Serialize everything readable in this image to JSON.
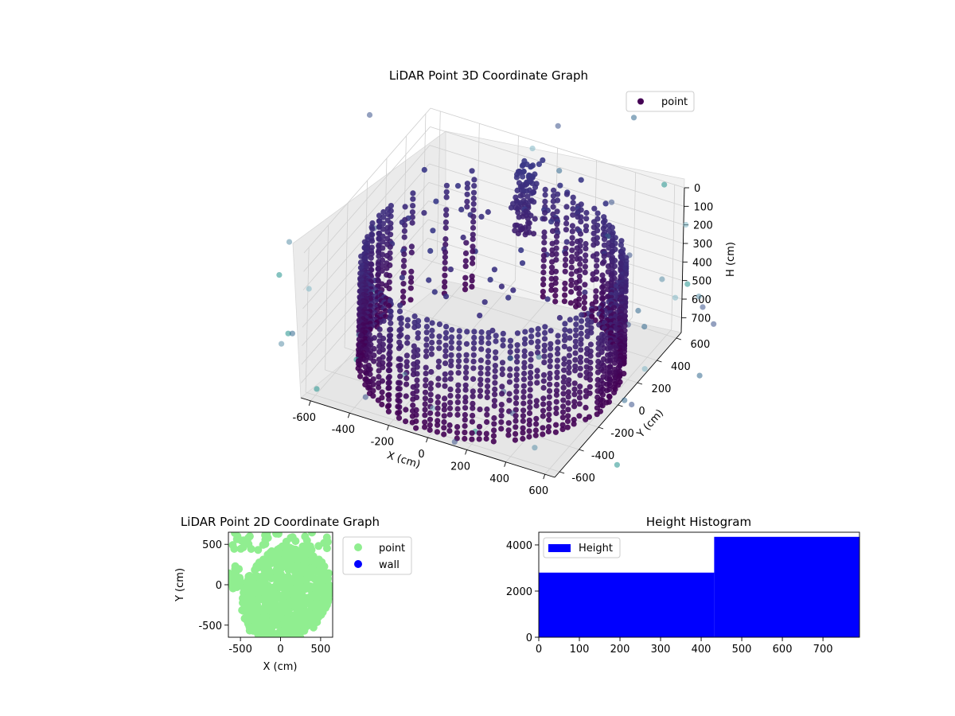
{
  "chart_data": [
    {
      "type": "scatter",
      "projection": "3d",
      "title": "LiDAR Point 3D Coordinate Graph",
      "xlabel": "X (cm)",
      "ylabel": "Y (cm)",
      "zlabel": "H (cm)",
      "xticks": [
        -600,
        -400,
        -200,
        0,
        200,
        400,
        600
      ],
      "yticks": [
        -600,
        -400,
        -200,
        0,
        200,
        400,
        600
      ],
      "zticks": [
        0,
        100,
        200,
        300,
        400,
        500,
        600,
        700
      ],
      "xlim": [
        -650,
        650
      ],
      "ylim": [
        -650,
        650
      ],
      "zlim": [
        780,
        0
      ],
      "grid": true,
      "legend": {
        "position": "top-right",
        "entries": [
          "point"
        ]
      },
      "colormap": "viridis",
      "series": [
        {
          "name": "point",
          "color": "#440154",
          "description_points": "dense cylindrical wall of points around radius ~600 cm, heights 0-780 cm, plus scattered outliers"
        }
      ]
    },
    {
      "type": "scatter",
      "title": "LiDAR Point 2D Coordinate Graph",
      "xlabel": "X (cm)",
      "ylabel": "Y (cm)",
      "xticks": [
        -500,
        0,
        500
      ],
      "yticks": [
        -500,
        0,
        500
      ],
      "xlim": [
        -650,
        650
      ],
      "ylim": [
        -650,
        650
      ],
      "legend": {
        "position": "outside-right",
        "entries": [
          "point",
          "wall"
        ]
      },
      "series": [
        {
          "name": "point",
          "color": "#90ee90"
        },
        {
          "name": "wall",
          "color": "#0000ff"
        }
      ]
    },
    {
      "type": "bar",
      "title": "Height Histogram",
      "xticks": [
        0,
        100,
        200,
        300,
        400,
        500,
        600,
        700
      ],
      "yticks": [
        0,
        2000,
        4000
      ],
      "xlim": [
        0,
        790
      ],
      "ylim": [
        0,
        4550
      ],
      "legend": {
        "position": "top-left",
        "entries": [
          "Height"
        ]
      },
      "bins": [
        {
          "x0": 0,
          "x1": 432,
          "value": 2800
        },
        {
          "x0": 432,
          "x1": 790,
          "value": 4350
        }
      ],
      "color": "#0000ff"
    }
  ]
}
